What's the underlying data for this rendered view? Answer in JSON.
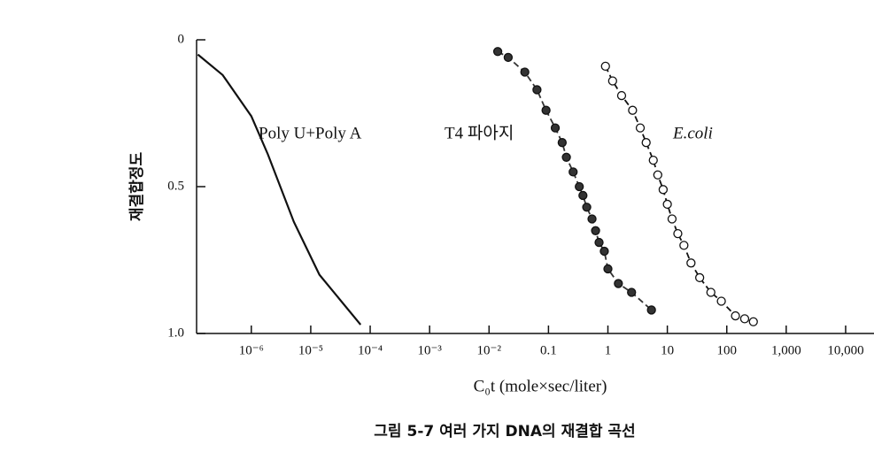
{
  "chart_data": {
    "type": "scatter",
    "xlabel": "C₀t (mole×sec/liter)",
    "ylabel": "재결합정도",
    "caption": "그림 5-7  여러 가지 DNA의 재결합 곡선",
    "annotations": [
      "Poly U+Poly A",
      "T4 파아지",
      "E.coli"
    ],
    "xscale": "log",
    "xlim": [
      1.2e-07,
      30000
    ],
    "ylim": [
      0,
      1
    ],
    "y_inverted": true,
    "xticks": [
      {
        "value": 1e-06,
        "label": "10⁻⁶"
      },
      {
        "value": 1e-05,
        "label": "10⁻⁵"
      },
      {
        "value": 0.0001,
        "label": "10⁻⁴"
      },
      {
        "value": 0.001,
        "label": "10⁻³"
      },
      {
        "value": 0.01,
        "label": "10⁻²"
      },
      0.1,
      1,
      10,
      100,
      {
        "value": 1000,
        "label": "1,000"
      },
      {
        "value": 10000,
        "label": "10,000"
      }
    ],
    "yticks": [
      0,
      0.5,
      {
        "value": 1,
        "label": "1.0"
      }
    ],
    "series": [
      {
        "name": "Poly U+Poly A",
        "color": "#111111",
        "style": "line",
        "x": [
          1.26e-07,
          3.3e-07,
          1e-06,
          1.9e-06,
          5.2e-06,
          1.4e-05,
          6.9e-05
        ],
        "values": [
          0.05,
          0.12,
          0.26,
          0.39,
          0.62,
          0.8,
          0.97
        ]
      },
      {
        "name": "T4 파아지",
        "color": "#333333",
        "style": "filled",
        "x": [
          0.014,
          0.021,
          0.04,
          0.064,
          0.091,
          0.13,
          0.17,
          0.2,
          0.26,
          0.33,
          0.38,
          0.44,
          0.54,
          0.62,
          0.71,
          0.87,
          1.0,
          1.5,
          2.5,
          5.4
        ],
        "values": [
          0.04,
          0.06,
          0.11,
          0.17,
          0.24,
          0.3,
          0.35,
          0.4,
          0.45,
          0.5,
          0.53,
          0.57,
          0.61,
          0.65,
          0.69,
          0.72,
          0.78,
          0.83,
          0.86,
          0.92
        ]
      },
      {
        "name": "E.coli",
        "color": "#111111",
        "style": "open",
        "x": [
          0.91,
          1.2,
          1.7,
          2.6,
          3.5,
          4.4,
          5.8,
          6.9,
          8.5,
          10,
          12,
          15,
          19,
          25,
          35,
          54,
          81,
          140,
          200,
          280
        ],
        "values": [
          0.09,
          0.14,
          0.19,
          0.24,
          0.3,
          0.35,
          0.41,
          0.46,
          0.51,
          0.56,
          0.61,
          0.66,
          0.7,
          0.76,
          0.81,
          0.86,
          0.89,
          0.94,
          0.95,
          0.96
        ]
      }
    ]
  }
}
